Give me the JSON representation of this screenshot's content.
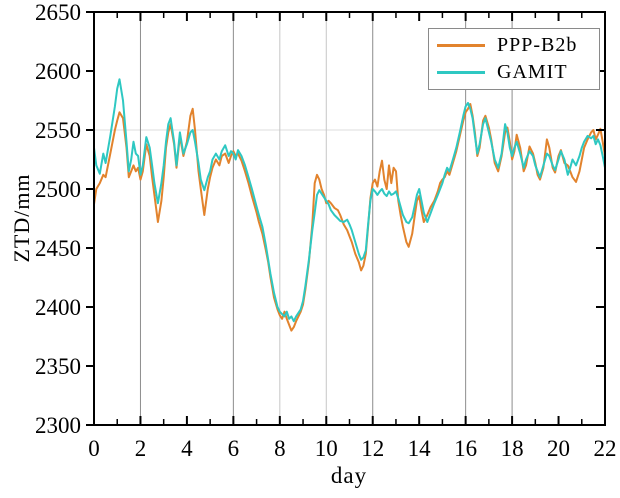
{
  "figure": {
    "xlabel": "day",
    "ylabel": "ZTD/mm"
  },
  "chart_data": {
    "type": "line",
    "title": "",
    "xlabel": "day",
    "ylabel": "ZTD/mm",
    "xlim": [
      0,
      22
    ],
    "ylim": [
      2300,
      2650
    ],
    "xticks_labeled": [
      0,
      2,
      4,
      6,
      8,
      10,
      12,
      14,
      16,
      18,
      20,
      22
    ],
    "xticks_minor": [
      1,
      3,
      5,
      7,
      9,
      11,
      13,
      15,
      17,
      19,
      21
    ],
    "yticks": [
      2300,
      2350,
      2400,
      2450,
      2500,
      2550,
      2600,
      2650
    ],
    "grid": {
      "vertical_days_dark": [
        2,
        6,
        12,
        16,
        18
      ],
      "vertical_days_light": [
        8,
        10
      ],
      "horizontal_values": [
        2550
      ]
    },
    "legend": {
      "position": "top-right",
      "entries": [
        "PPP-B2b",
        "GAMIT"
      ]
    },
    "x": [
      0,
      0.1,
      0.25,
      0.4,
      0.5,
      0.7,
      0.9,
      1.0,
      1.1,
      1.25,
      1.4,
      1.5,
      1.6,
      1.7,
      1.8,
      1.9,
      2.0,
      2.1,
      2.25,
      2.4,
      2.5,
      2.6,
      2.75,
      2.9,
      3.0,
      3.1,
      3.2,
      3.3,
      3.45,
      3.55,
      3.7,
      3.85,
      4.0,
      4.15,
      4.25,
      4.35,
      4.5,
      4.6,
      4.75,
      4.9,
      5.0,
      5.1,
      5.25,
      5.4,
      5.5,
      5.65,
      5.8,
      5.9,
      6.0,
      6.1,
      6.2,
      6.35,
      6.5,
      6.65,
      6.8,
      7.0,
      7.1,
      7.25,
      7.4,
      7.5,
      7.6,
      7.75,
      7.9,
      8.0,
      8.1,
      8.2,
      8.3,
      8.4,
      8.5,
      8.6,
      8.7,
      8.8,
      8.9,
      9.0,
      9.1,
      9.25,
      9.4,
      9.5,
      9.6,
      9.7,
      9.8,
      9.9,
      10.0,
      10.1,
      10.2,
      10.35,
      10.5,
      10.6,
      10.75,
      10.9,
      11.0,
      11.1,
      11.25,
      11.4,
      11.5,
      11.6,
      11.7,
      11.8,
      11.9,
      12.0,
      12.1,
      12.2,
      12.3,
      12.4,
      12.5,
      12.6,
      12.7,
      12.8,
      12.9,
      13.0,
      13.1,
      13.2,
      13.3,
      13.45,
      13.55,
      13.7,
      13.8,
      13.9,
      14.0,
      14.1,
      14.2,
      14.35,
      14.5,
      14.65,
      14.8,
      14.9,
      15.0,
      15.1,
      15.2,
      15.3,
      15.45,
      15.6,
      15.75,
      15.9,
      16.0,
      16.1,
      16.2,
      16.3,
      16.4,
      16.5,
      16.6,
      16.75,
      16.85,
      17.0,
      17.1,
      17.25,
      17.4,
      17.55,
      17.7,
      17.8,
      17.9,
      18.0,
      18.1,
      18.2,
      18.35,
      18.5,
      18.6,
      18.75,
      18.9,
      19.0,
      19.1,
      19.2,
      19.35,
      19.5,
      19.6,
      19.75,
      19.85,
      20.0,
      20.1,
      20.25,
      20.4,
      20.5,
      20.6,
      20.75,
      20.9,
      21.0,
      21.1,
      21.25,
      21.4,
      21.5,
      21.6,
      21.7,
      21.8,
      21.9,
      22.0
    ],
    "series": [
      {
        "name": "PPP-B2b",
        "color": "#E2832D",
        "values": [
          2487,
          2500,
          2505,
          2512,
          2510,
          2530,
          2550,
          2558,
          2565,
          2560,
          2535,
          2510,
          2515,
          2520,
          2515,
          2518,
          2508,
          2515,
          2538,
          2528,
          2510,
          2495,
          2472,
          2490,
          2510,
          2535,
          2548,
          2555,
          2538,
          2518,
          2545,
          2528,
          2540,
          2562,
          2568,
          2550,
          2515,
          2500,
          2478,
          2500,
          2510,
          2518,
          2525,
          2520,
          2528,
          2530,
          2522,
          2528,
          2532,
          2528,
          2530,
          2524,
          2515,
          2505,
          2494,
          2480,
          2472,
          2462,
          2448,
          2438,
          2425,
          2408,
          2398,
          2393,
          2390,
          2396,
          2390,
          2385,
          2380,
          2383,
          2388,
          2392,
          2396,
          2402,
          2415,
          2438,
          2470,
          2505,
          2512,
          2508,
          2500,
          2495,
          2488,
          2490,
          2488,
          2484,
          2482,
          2478,
          2470,
          2465,
          2460,
          2455,
          2445,
          2438,
          2431,
          2435,
          2445,
          2468,
          2492,
          2505,
          2508,
          2502,
          2515,
          2524,
          2508,
          2500,
          2520,
          2505,
          2518,
          2515,
          2490,
          2478,
          2468,
          2455,
          2451,
          2462,
          2476,
          2490,
          2494,
          2482,
          2472,
          2478,
          2485,
          2490,
          2498,
          2505,
          2508,
          2510,
          2515,
          2512,
          2522,
          2532,
          2545,
          2558,
          2565,
          2568,
          2572,
          2562,
          2548,
          2528,
          2535,
          2558,
          2562,
          2552,
          2542,
          2522,
          2515,
          2528,
          2548,
          2552,
          2540,
          2525,
          2532,
          2546,
          2535,
          2515,
          2520,
          2536,
          2530,
          2522,
          2512,
          2508,
          2518,
          2542,
          2535,
          2518,
          2514,
          2528,
          2533,
          2522,
          2520,
          2515,
          2510,
          2506,
          2515,
          2525,
          2535,
          2542,
          2548,
          2550,
          2542,
          2546,
          2551,
          2540,
          2528
        ]
      },
      {
        "name": "GAMIT",
        "color": "#2EC8C2",
        "values": [
          2535,
          2520,
          2513,
          2530,
          2522,
          2545,
          2570,
          2585,
          2593,
          2575,
          2540,
          2515,
          2525,
          2540,
          2530,
          2528,
          2512,
          2520,
          2544,
          2535,
          2520,
          2505,
          2488,
          2505,
          2520,
          2540,
          2555,
          2560,
          2540,
          2520,
          2548,
          2530,
          2538,
          2548,
          2550,
          2540,
          2522,
          2508,
          2499,
          2510,
          2515,
          2525,
          2530,
          2525,
          2532,
          2537,
          2528,
          2532,
          2530,
          2525,
          2533,
          2528,
          2520,
          2510,
          2500,
          2485,
          2478,
          2468,
          2452,
          2440,
          2428,
          2412,
          2400,
          2396,
          2394,
          2392,
          2396,
          2390,
          2392,
          2388,
          2392,
          2395,
          2398,
          2405,
          2418,
          2440,
          2465,
          2480,
          2495,
          2499,
          2496,
          2493,
          2490,
          2487,
          2482,
          2478,
          2475,
          2473,
          2472,
          2474,
          2470,
          2465,
          2455,
          2445,
          2440,
          2442,
          2448,
          2470,
          2490,
          2500,
          2498,
          2495,
          2498,
          2500,
          2496,
          2494,
          2498,
          2495,
          2496,
          2498,
          2492,
          2485,
          2478,
          2472,
          2471,
          2476,
          2485,
          2495,
          2500,
          2490,
          2480,
          2472,
          2480,
          2488,
          2495,
          2500,
          2505,
          2512,
          2518,
          2515,
          2525,
          2535,
          2548,
          2562,
          2570,
          2573,
          2568,
          2560,
          2545,
          2530,
          2538,
          2555,
          2560,
          2548,
          2540,
          2525,
          2518,
          2530,
          2555,
          2548,
          2535,
          2528,
          2535,
          2540,
          2530,
          2518,
          2525,
          2532,
          2528,
          2520,
          2515,
          2510,
          2520,
          2530,
          2528,
          2520,
          2516,
          2525,
          2532,
          2525,
          2512,
          2518,
          2525,
          2520,
          2528,
          2535,
          2540,
          2545,
          2543,
          2545,
          2538,
          2542,
          2537,
          2528,
          2518
        ]
      }
    ]
  },
  "style_colors": {
    "axis": "#000000",
    "grid_dark": "#8c8c8c",
    "grid_light": "#c6c6c6",
    "grid_horizontal": "#dcdcdc",
    "legend_border": "#8a8a8a",
    "background": "#ffffff"
  }
}
